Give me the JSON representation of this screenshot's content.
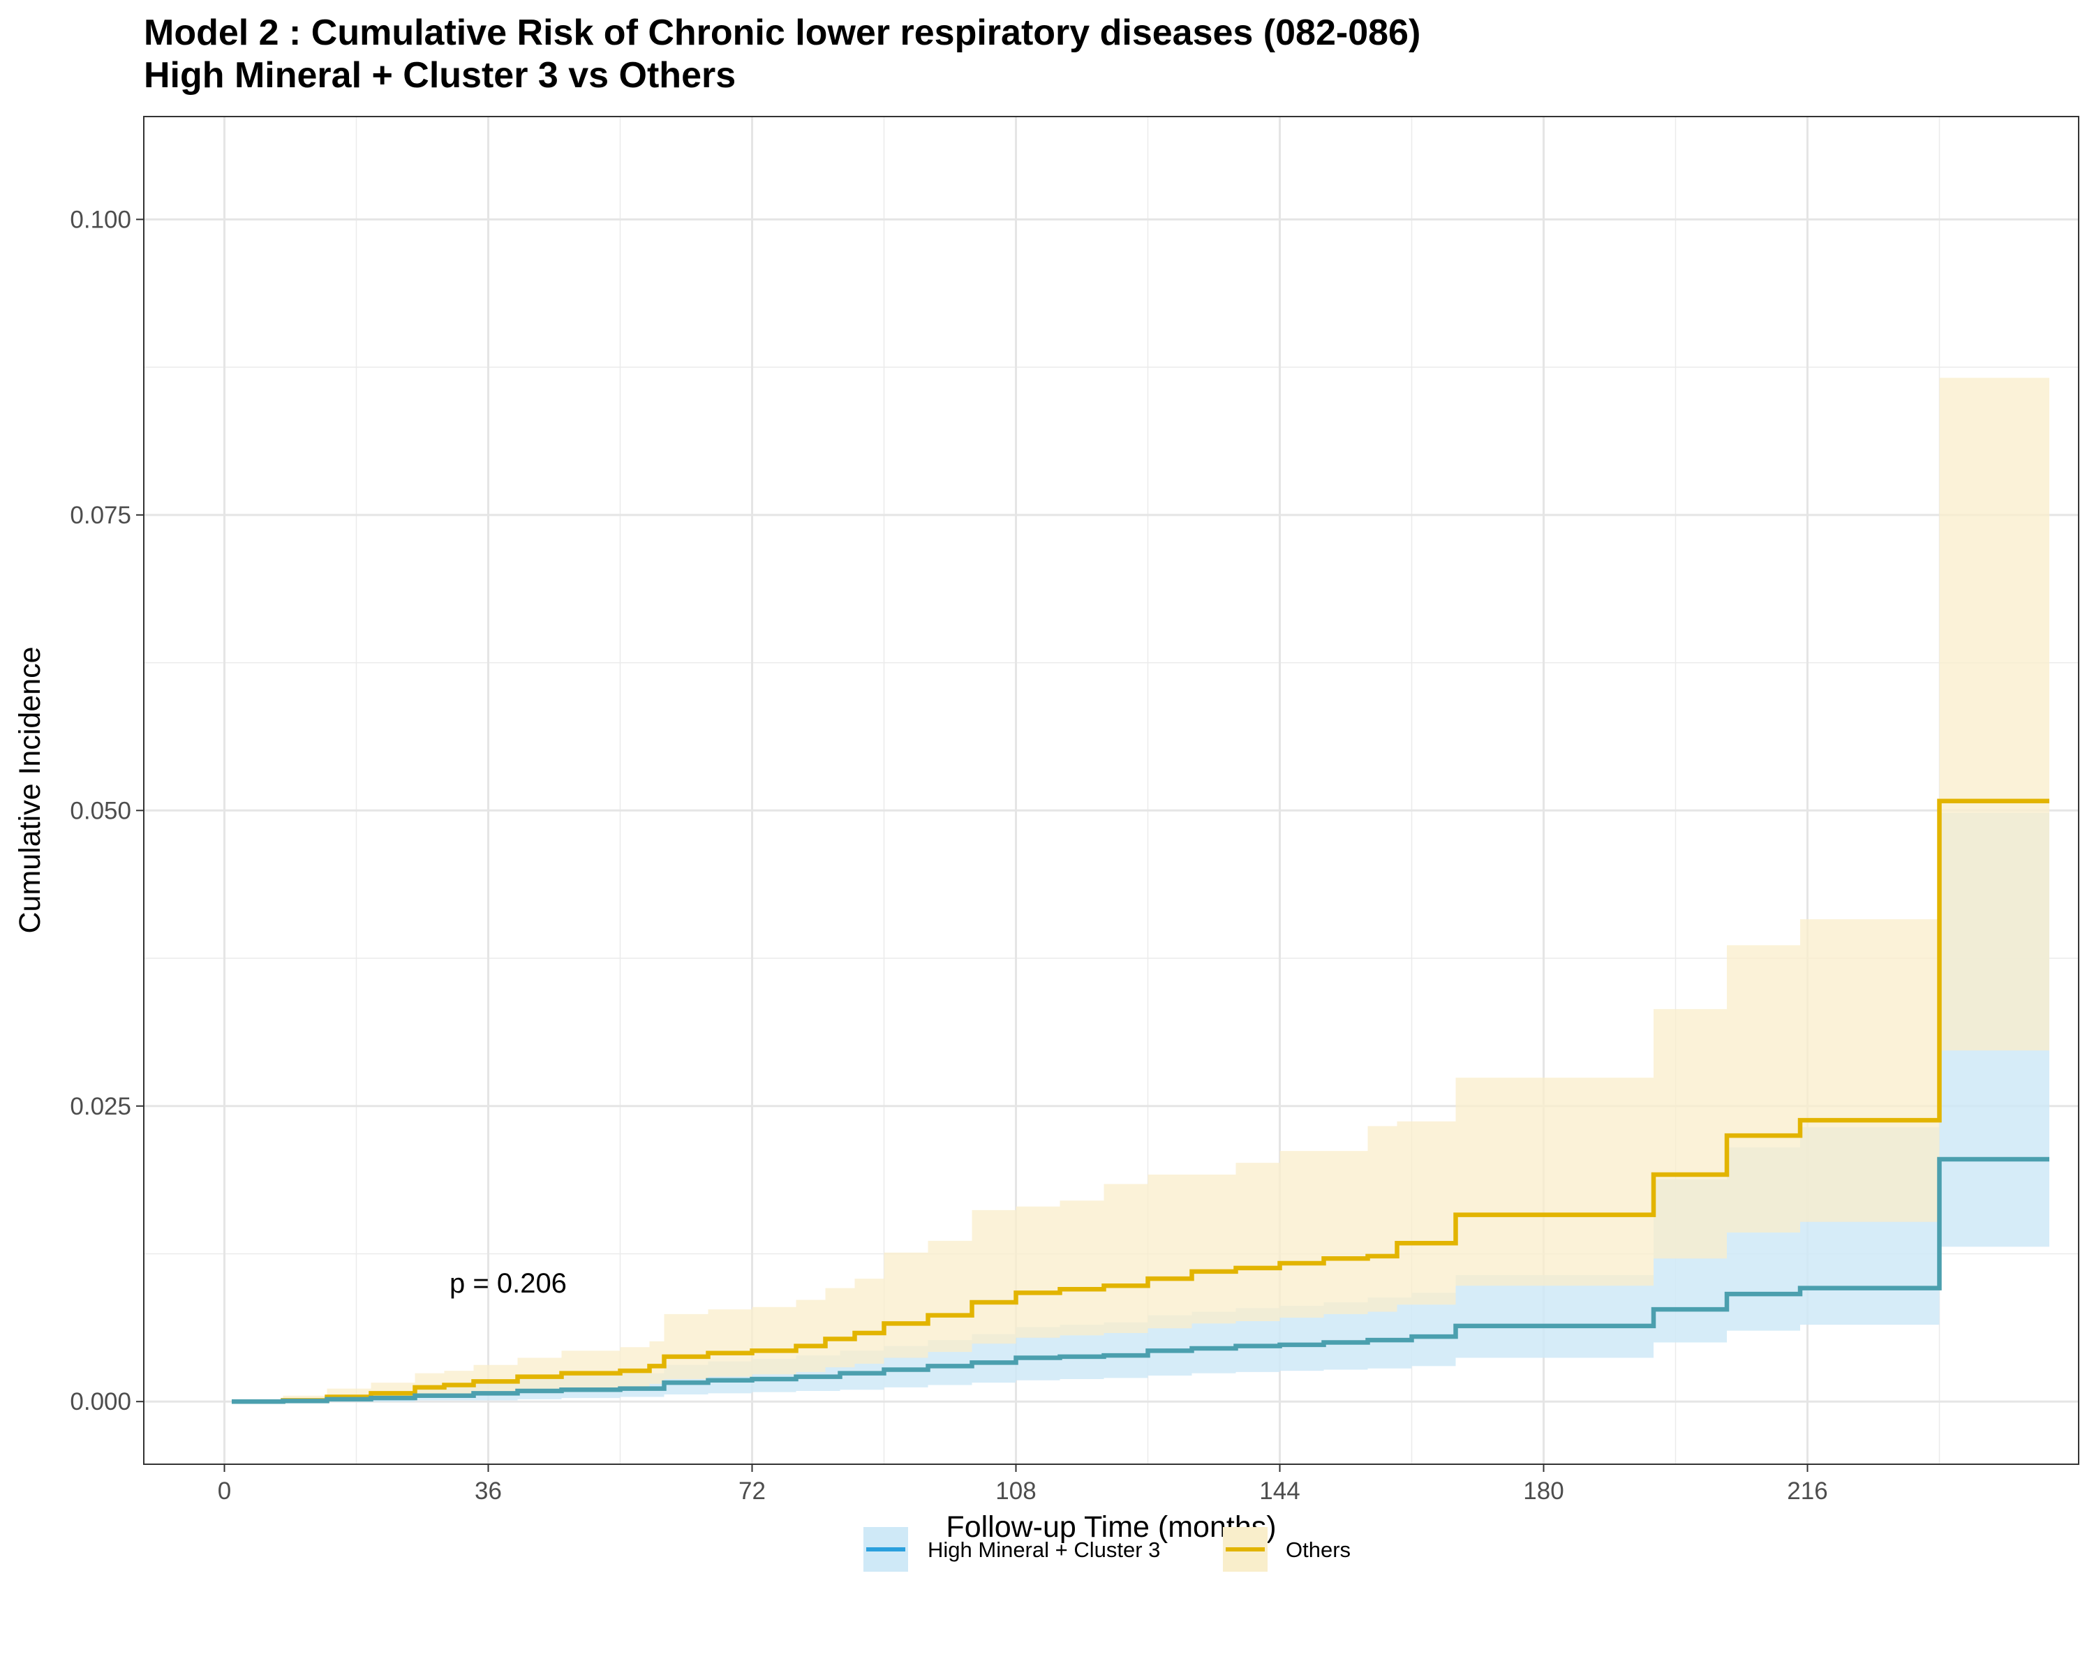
{
  "chart_data": {
    "type": "line",
    "title": "Model 2 : Cumulative Risk of Chronic lower respiratory diseases (082-086)",
    "subtitle": "High Mineral + Cluster 3 vs Others",
    "xlabel": "Follow-up Time (months)",
    "ylabel": "Cumulative Incidence",
    "xlim": [
      -11,
      253
    ],
    "ylim": [
      -0.0053,
      0.1087
    ],
    "x_ticks": [
      0,
      36,
      72,
      108,
      144,
      180,
      216
    ],
    "x_tick_labels": [
      "0",
      "36",
      "72",
      "108",
      "144",
      "180",
      "216"
    ],
    "y_ticks": [
      0,
      0.025,
      0.05,
      0.075,
      0.1
    ],
    "y_tick_labels": [
      "0.000",
      "0.025",
      "0.050",
      "0.075",
      "0.100"
    ],
    "grid": true,
    "legend_position": "bottom",
    "annotation": "p = 0.206",
    "series": [
      {
        "name": "High Mineral + Cluster 3",
        "color": "#2aa0dd",
        "line_color": "#4b9fae",
        "band_color": "#cfe9f7",
        "step": true,
        "x": [
          1,
          8,
          14,
          20,
          26,
          34,
          40,
          46,
          54,
          60,
          66,
          72,
          78,
          84,
          90,
          96,
          102,
          108,
          114,
          120,
          126,
          132,
          138,
          144,
          150,
          156,
          162,
          168,
          176,
          190,
          195,
          205,
          215,
          234,
          249
        ],
        "y": [
          0,
          5e-05,
          0.0002,
          0.0003,
          0.0005,
          0.0007,
          0.0009,
          0.001,
          0.0011,
          0.0016,
          0.0018,
          0.0019,
          0.0021,
          0.0024,
          0.0027,
          0.003,
          0.0033,
          0.0037,
          0.0038,
          0.0039,
          0.0043,
          0.0045,
          0.0047,
          0.0048,
          0.005,
          0.0052,
          0.0055,
          0.0064,
          0.0064,
          0.0064,
          0.0078,
          0.0091,
          0.0096,
          0.0205,
          0.0205
        ],
        "lower": [
          0,
          0,
          0,
          0,
          0.0001,
          0.0001,
          0.0002,
          0.0003,
          0.0004,
          0.0006,
          0.0007,
          0.0008,
          0.0009,
          0.001,
          0.0012,
          0.0014,
          0.0016,
          0.0018,
          0.0019,
          0.002,
          0.0022,
          0.0024,
          0.0025,
          0.0026,
          0.0027,
          0.0028,
          0.003,
          0.0037,
          0.0037,
          0.0037,
          0.005,
          0.006,
          0.0065,
          0.0131,
          0.0131
        ],
        "upper": [
          0,
          0.0003,
          0.0006,
          0.0009,
          0.0014,
          0.0018,
          0.002,
          0.0022,
          0.0024,
          0.0031,
          0.0034,
          0.0036,
          0.0039,
          0.0043,
          0.0047,
          0.0052,
          0.0057,
          0.0063,
          0.0065,
          0.0067,
          0.0073,
          0.0076,
          0.0079,
          0.0081,
          0.0084,
          0.0088,
          0.0092,
          0.0107,
          0.0107,
          0.0107,
          0.0188,
          0.0215,
          0.0232,
          0.0498,
          0.0498
        ]
      },
      {
        "name": "Others",
        "color": "#e2b400",
        "line_color": "#e2b400",
        "band_color": "#f9eecb",
        "step": true,
        "x": [
          1,
          8,
          14,
          20,
          26,
          30,
          34,
          40,
          46,
          54,
          58,
          60,
          66,
          72,
          78,
          82,
          86,
          90,
          96,
          102,
          108,
          114,
          120,
          126,
          132,
          138,
          144,
          150,
          156,
          160,
          168,
          180,
          195,
          205,
          215,
          234,
          249
        ],
        "y": [
          0,
          0.0001,
          0.0004,
          0.0007,
          0.0012,
          0.0014,
          0.0017,
          0.0021,
          0.0024,
          0.0026,
          0.003,
          0.0038,
          0.0041,
          0.0043,
          0.0047,
          0.0053,
          0.0058,
          0.0066,
          0.0073,
          0.0084,
          0.0092,
          0.0095,
          0.0098,
          0.0104,
          0.011,
          0.0113,
          0.0117,
          0.0121,
          0.0123,
          0.0134,
          0.0158,
          0.0158,
          0.0192,
          0.0225,
          0.0238,
          0.0508,
          0.0508
        ],
        "lower": [
          0,
          0,
          0.0001,
          0.0002,
          0.0004,
          0.0005,
          0.0007,
          0.0009,
          0.0011,
          0.0012,
          0.0015,
          0.0019,
          0.0021,
          0.0023,
          0.0025,
          0.0029,
          0.0032,
          0.0037,
          0.0042,
          0.0049,
          0.0054,
          0.0056,
          0.0058,
          0.0062,
          0.0066,
          0.0068,
          0.0071,
          0.0074,
          0.0076,
          0.0082,
          0.0098,
          0.0098,
          0.0121,
          0.0143,
          0.0152,
          0.0297,
          0.0297
        ],
        "upper": [
          0,
          0.0005,
          0.0011,
          0.0016,
          0.0024,
          0.0026,
          0.0031,
          0.0037,
          0.0043,
          0.0046,
          0.0051,
          0.0074,
          0.0078,
          0.008,
          0.0086,
          0.0096,
          0.0104,
          0.0126,
          0.0136,
          0.0162,
          0.0165,
          0.017,
          0.0184,
          0.0192,
          0.0192,
          0.0202,
          0.0212,
          0.0212,
          0.0233,
          0.0237,
          0.0274,
          0.0274,
          0.0332,
          0.0386,
          0.0408,
          0.0866,
          0.0866
        ]
      }
    ]
  }
}
